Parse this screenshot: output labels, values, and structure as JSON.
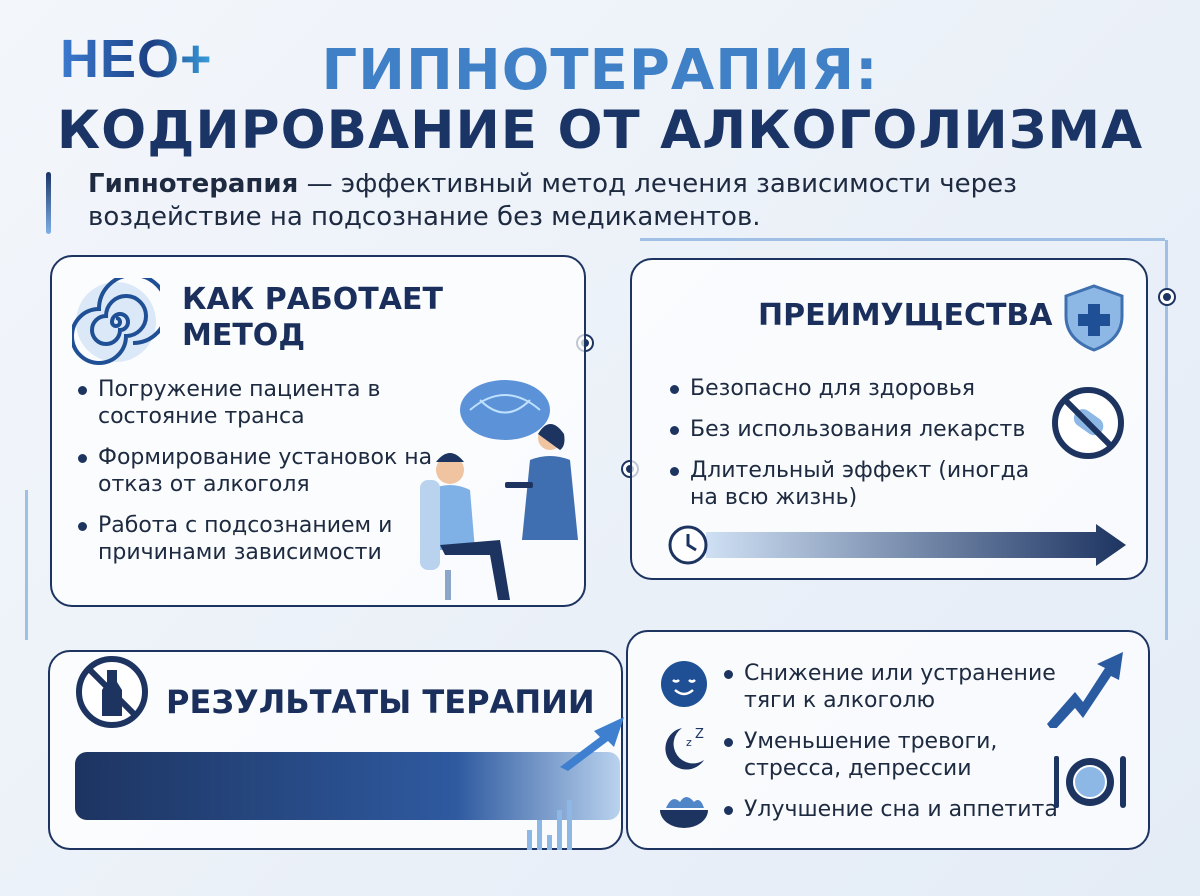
{
  "logo": "НЕО+",
  "title": {
    "line1": "ГИПНОТЕРАПИЯ:",
    "line2": "КОДИРОВАНИЕ ОТ АЛКОГОЛИЗМА"
  },
  "intro": {
    "bold": "Гипнотерапия",
    "text": " — эффективный метод лечения зависимости через воздействие на подсознание без медикаментов."
  },
  "how": {
    "title": "КАК РАБОТАЕТ МЕТОД",
    "icon": "spiral-icon",
    "items": [
      "Погружение пациента в состояние транса",
      "Формирование установок на отказ от алкоголя",
      "Работа с подсознанием и причинами зависимости"
    ]
  },
  "advantages": {
    "title": "ПРЕИМУЩЕСТВА",
    "icon": "shield-plus-icon",
    "items": [
      "Безопасно для здоровья",
      "Без использования лекарств",
      "Длительный эффект (иногда на всю жизнь)"
    ]
  },
  "results": {
    "title": "РЕЗУЛЬТАТЫ ТЕРАПИИ",
    "icon": "no-alcohol-icon",
    "items": [
      {
        "icon": "calm-face-icon",
        "text": "Снижение или устранение тяги к алкоголю"
      },
      {
        "icon": "moon-sleep-icon",
        "text": "Уменьшение тревоги, стресса, депрессии"
      },
      {
        "icon": "food-bowl-icon",
        "text": "Улучшение сна и аппетита"
      }
    ]
  },
  "colors": {
    "navy": "#1d3461",
    "accent": "#3f80c6"
  }
}
